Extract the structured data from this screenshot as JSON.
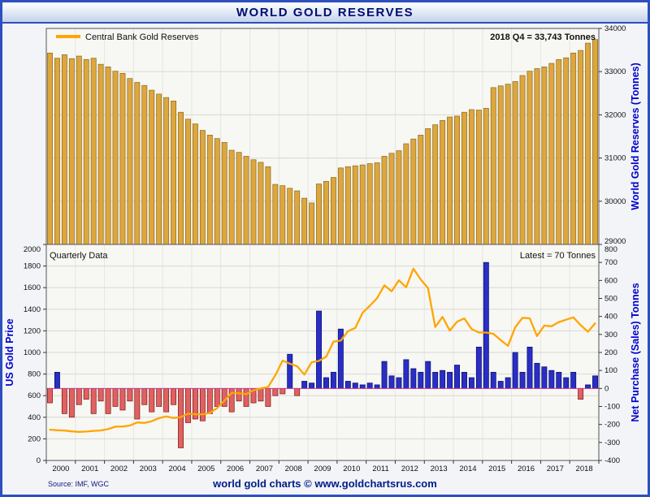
{
  "header": {
    "title": "WORLD GOLD RESERVES"
  },
  "footer": {
    "source": "Source: IMF, WGC",
    "credit": "world gold charts © www.goldchartsrus.com"
  },
  "colors": {
    "frame_blue": "#2e4fc0",
    "title_navy": "#000d72",
    "axis_title_blue": "#0000cc",
    "gold_bar": "#DDA63E",
    "gold_bar_edge": "#8a6a1a",
    "price_line_orange": "#FFA500",
    "positive_bar_blue": "#2a2ec4",
    "negative_bar_red": "#e06161",
    "zero_line_magenta": "#cc3399"
  },
  "chart_data": [
    {
      "type": "bar",
      "panel": "top",
      "legend": "Central Bank Gold Reserves",
      "annotation": "2018 Q4 = 33,743 Tonnes",
      "ylabel_right": "World Gold Reserves (Tonnes)",
      "ylim_right": [
        29000,
        34000
      ],
      "ytick_step": 1000,
      "frequency": "quarterly",
      "x_start_year": 2000,
      "x_end_year": 2018,
      "series_name": "Central Bank Gold Reserves (Tonnes)",
      "values": [
        33430,
        33310,
        33390,
        33300,
        33360,
        33280,
        33310,
        33170,
        33110,
        33010,
        32960,
        32840,
        32750,
        32680,
        32570,
        32480,
        32400,
        32320,
        32060,
        31900,
        31790,
        31640,
        31530,
        31450,
        31360,
        31180,
        31130,
        31040,
        30960,
        30900,
        30800,
        30390,
        30360,
        30300,
        30240,
        30070,
        29960,
        30400,
        30460,
        30550,
        30770,
        30800,
        30820,
        30840,
        30870,
        30890,
        31040,
        31110,
        31170,
        31330,
        31440,
        31530,
        31680,
        31770,
        31870,
        31950,
        31970,
        32060,
        32120,
        32110,
        32150,
        32630,
        32670,
        32710,
        32770,
        32910,
        33010,
        33070,
        33110,
        33190,
        33280,
        33320,
        33430,
        33490,
        33660,
        33743
      ]
    },
    {
      "type": "bar+line",
      "panel": "bottom",
      "label_left": "Quarterly Data",
      "label_right": "Latest = 70 Tonnes",
      "ylabel_left": "US Gold Price",
      "ylabel_right": "Net Purchase (Sales) Tonnes",
      "ylim_left": [
        0,
        2000
      ],
      "ytick_left_step": 200,
      "ylim_right": [
        -400,
        800
      ],
      "ytick_right_step": 100,
      "x_years": [
        2000,
        2001,
        2002,
        2003,
        2004,
        2005,
        2006,
        2007,
        2008,
        2009,
        2010,
        2011,
        2012,
        2013,
        2014,
        2015,
        2016,
        2017,
        2018
      ],
      "series": [
        {
          "name": "US Gold Price",
          "type": "line",
          "axis": "left",
          "color": "#FFA500",
          "values": [
            285,
            280,
            277,
            269,
            265,
            268,
            274,
            278,
            290,
            313,
            314,
            323,
            352,
            347,
            363,
            392,
            408,
            393,
            401,
            434,
            427,
            427,
            440,
            485,
            554,
            627,
            622,
            614,
            650,
            667,
            680,
            788,
            925,
            896,
            872,
            795,
            909,
            922,
            960,
            1100,
            1110,
            1197,
            1227,
            1367,
            1432,
            1502,
            1622,
            1566,
            1668,
            1604,
            1776,
            1676,
            1597,
            1235,
            1329,
            1202,
            1284,
            1315,
            1217,
            1184,
            1184,
            1172,
            1114,
            1061,
            1233,
            1321,
            1316,
            1152,
            1249,
            1242,
            1281,
            1303,
            1325,
            1253,
            1192,
            1270
          ]
        },
        {
          "name": "Net Purchase (Sales) Tonnes",
          "type": "bar",
          "axis": "right",
          "color_positive": "#2a2ec4",
          "color_negative": "#e06161",
          "values": [
            -80,
            90,
            -140,
            -160,
            -90,
            -60,
            -140,
            -70,
            -140,
            -100,
            -120,
            -70,
            -170,
            -90,
            -130,
            -100,
            -130,
            -90,
            -330,
            -190,
            -170,
            -180,
            -140,
            -100,
            -100,
            -130,
            -70,
            -100,
            -80,
            -70,
            -100,
            -40,
            -30,
            190,
            -40,
            40,
            30,
            430,
            60,
            90,
            330,
            40,
            30,
            20,
            30,
            20,
            150,
            70,
            60,
            160,
            110,
            90,
            150,
            90,
            100,
            90,
            130,
            90,
            60,
            230,
            700,
            90,
            40,
            60,
            200,
            90,
            230,
            140,
            120,
            100,
            90,
            60,
            90,
            -60,
            20,
            70
          ]
        }
      ]
    }
  ]
}
